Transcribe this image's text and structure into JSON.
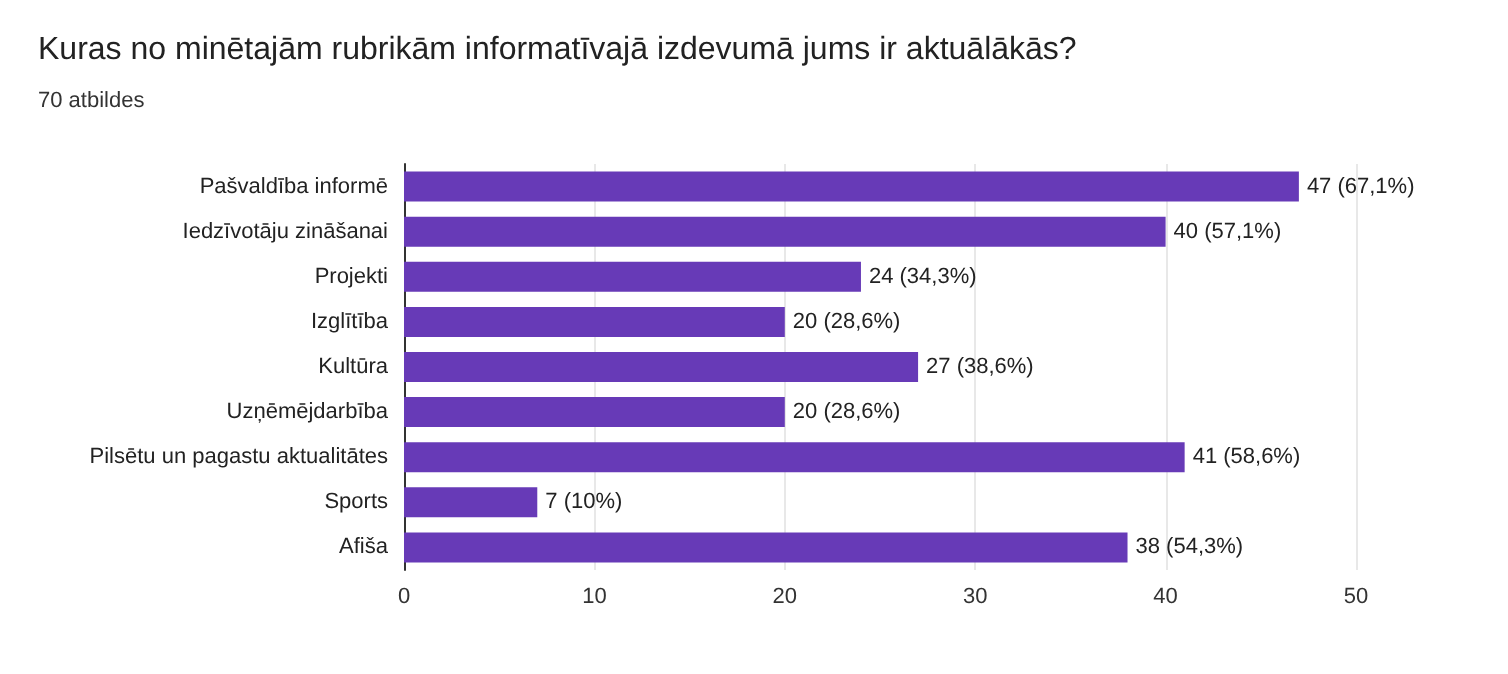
{
  "chart_data": {
    "type": "bar",
    "orientation": "horizontal",
    "title": "Kuras no minētajām rubrikām informatīvajā izdevumā jums ir aktuālākās?",
    "subtitle": "70 atbildes",
    "categories": [
      "Pašvaldība informē",
      "Iedzīvotāju zināšanai",
      "Projekti",
      "Izglītība",
      "Kultūra",
      "Uzņēmējdarbība",
      "Pilsētu un pagastu aktualitātes",
      "Sports",
      "Afiša"
    ],
    "values": [
      47,
      40,
      24,
      20,
      27,
      20,
      41,
      7,
      38
    ],
    "value_labels": [
      "47 (67,1%)",
      "40 (57,1%)",
      "24 (34,3%)",
      "20 (28,6%)",
      "27 (38,6%)",
      "20 (28,6%)",
      "41 (58,6%)",
      "7 (10%)",
      "38 (54,3%)"
    ],
    "color": "#673ab7",
    "xlim": [
      0,
      50
    ],
    "xticks": [
      0,
      10,
      20,
      30,
      40,
      50
    ],
    "grid": "x"
  }
}
